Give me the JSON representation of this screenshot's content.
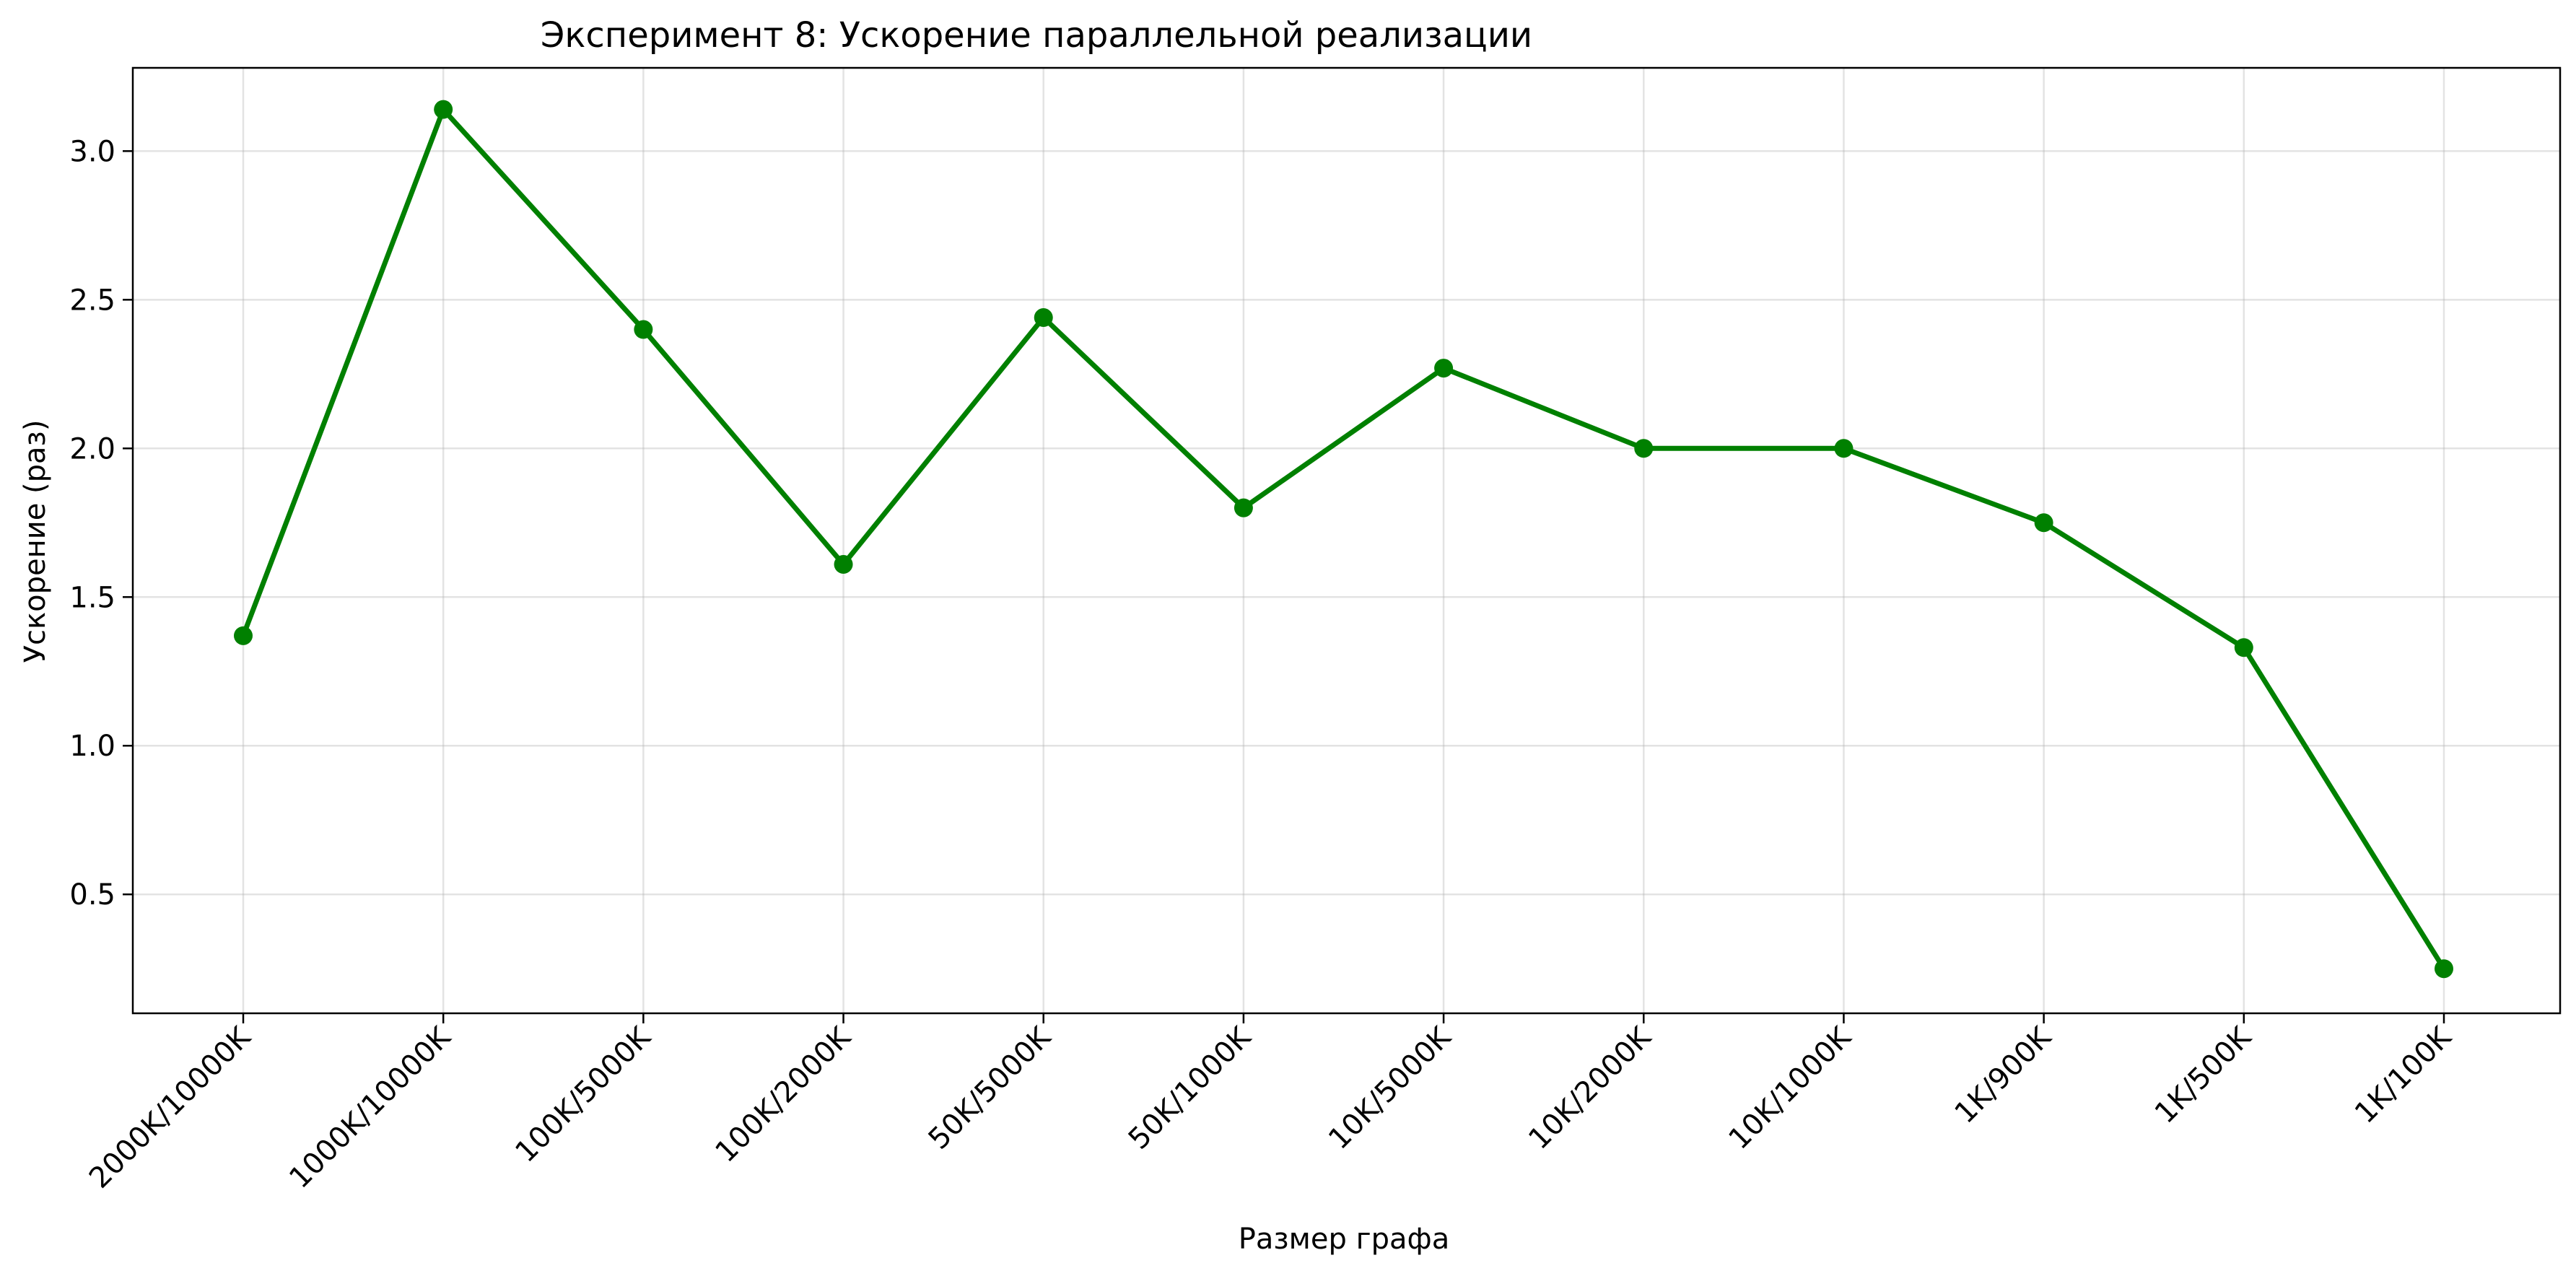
{
  "chart_data": {
    "type": "line",
    "title": "Эксперимент 8: Ускорение параллельной реализации",
    "xlabel": "Размер графа",
    "ylabel": "Ускорение (раз)",
    "categories": [
      "2000K/10000K",
      "1000K/10000K",
      "100K/5000K",
      "100K/2000K",
      "50K/5000K",
      "50K/1000K",
      "10K/5000K",
      "10K/2000K",
      "10K/1000K",
      "1K/900K",
      "1K/500K",
      "1K/100K"
    ],
    "series": [
      {
        "values": [
          1.37,
          3.14,
          2.4,
          1.61,
          2.44,
          1.8,
          2.27,
          2.0,
          2.0,
          1.75,
          1.33,
          0.25
        ]
      }
    ],
    "ylim": [
      0.1,
      3.28
    ],
    "yticks": [
      0.5,
      1.0,
      1.5,
      2.0,
      2.5,
      3.0
    ],
    "ytick_labels": [
      "0.5",
      "1.0",
      "1.5",
      "2.0",
      "2.5",
      "3.0"
    ],
    "grid": true,
    "line_color": "#008000",
    "marker": "circle",
    "x_tick_rotation": 45
  }
}
